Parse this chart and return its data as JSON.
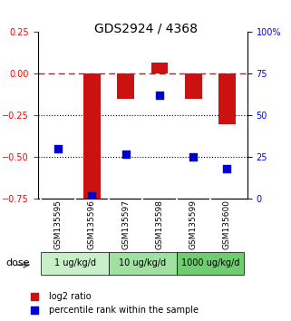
{
  "title": "GDS2924 / 4368",
  "samples": [
    "GSM135595",
    "GSM135596",
    "GSM135597",
    "GSM135598",
    "GSM135599",
    "GSM135600"
  ],
  "log2_ratio": [
    0.0,
    -0.75,
    -0.15,
    0.07,
    -0.15,
    -0.3
  ],
  "percentile_rank": [
    30,
    2,
    27,
    62,
    25,
    18
  ],
  "bar_color": "#cc1111",
  "dot_color": "#0000cc",
  "ylim_left": [
    -0.75,
    0.25
  ],
  "ylim_right": [
    0,
    100
  ],
  "yticks_left": [
    0.25,
    0.0,
    -0.25,
    -0.5,
    -0.75
  ],
  "yticks_right": [
    100,
    75,
    50,
    25,
    0
  ],
  "hline_y": 0.0,
  "dotted_lines": [
    -0.25,
    -0.5
  ],
  "dose_groups": [
    {
      "label": "1 ug/kg/d",
      "samples": [
        0,
        1
      ],
      "color": "#c8f0c8"
    },
    {
      "label": "10 ug/kg/d",
      "samples": [
        2,
        3
      ],
      "color": "#a0e0a0"
    },
    {
      "label": "1000 ug/kg/d",
      "samples": [
        4,
        5
      ],
      "color": "#70cc70"
    }
  ],
  "dose_label": "dose",
  "legend_red": "log2 ratio",
  "legend_blue": "percentile rank within the sample",
  "bar_width": 0.5,
  "bg_color": "#ffffff",
  "sample_bg_color": "#d0d0d0"
}
